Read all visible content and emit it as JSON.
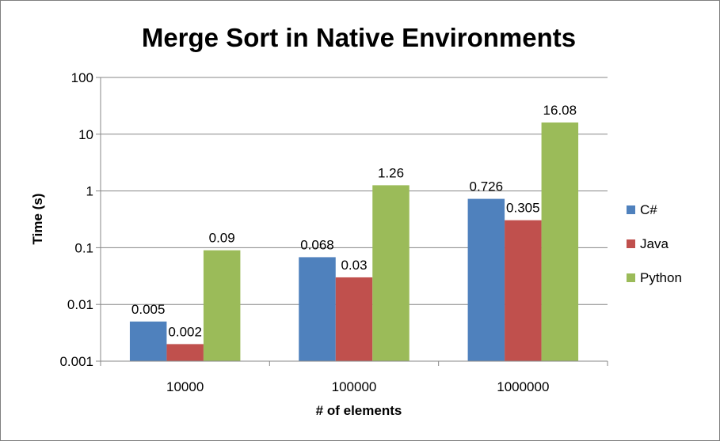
{
  "chart_data": {
    "type": "bar",
    "title": "Merge Sort in Native Environments",
    "xlabel": "# of elements",
    "ylabel": "Time (s)",
    "y_scale": "log",
    "ylim": [
      0.001,
      100
    ],
    "y_ticks": [
      {
        "value": 0.001,
        "label": "0.001"
      },
      {
        "value": 0.01,
        "label": "0.01"
      },
      {
        "value": 0.1,
        "label": "0.1"
      },
      {
        "value": 1,
        "label": "1"
      },
      {
        "value": 10,
        "label": "10"
      },
      {
        "value": 100,
        "label": "100"
      }
    ],
    "grid": true,
    "legend_position": "right",
    "categories": [
      "10000",
      "100000",
      "1000000"
    ],
    "series": [
      {
        "name": "C#",
        "color": "#4f81bd",
        "values": [
          0.005,
          0.068,
          0.726
        ],
        "labels": [
          "0.005",
          "0.068",
          "0.726"
        ]
      },
      {
        "name": "Java",
        "color": "#c0504d",
        "values": [
          0.002,
          0.03,
          0.305
        ],
        "labels": [
          "0.002",
          "0.03",
          "0.305"
        ]
      },
      {
        "name": "Python",
        "color": "#9bbb59",
        "values": [
          0.09,
          1.26,
          16.08
        ],
        "labels": [
          "0.09",
          "1.26",
          "16.08"
        ]
      }
    ]
  }
}
